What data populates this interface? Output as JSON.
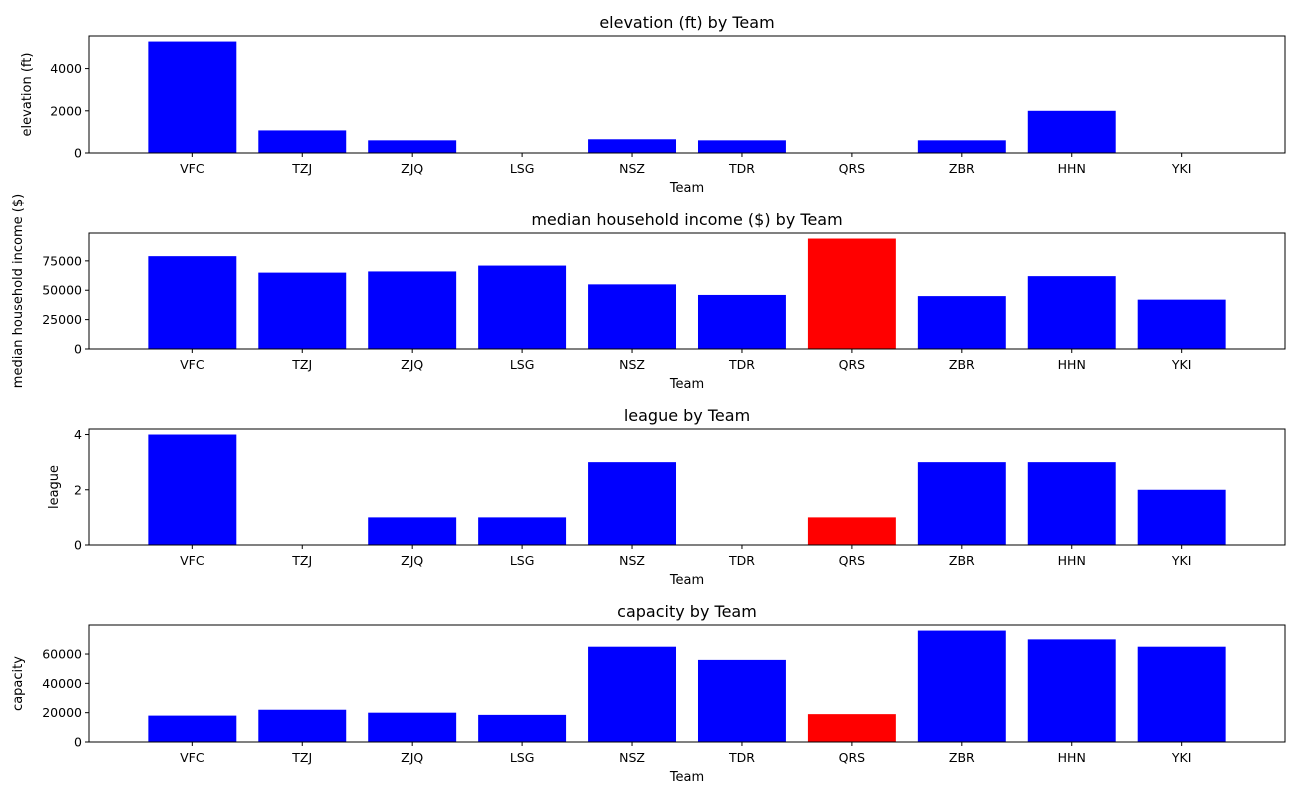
{
  "figure": {
    "highlight_color": "#ff0000",
    "bar_color": "#0000ff",
    "grid": false
  },
  "chart_data": [
    {
      "type": "bar",
      "title": "elevation (ft) by Team",
      "xlabel": "Team",
      "ylabel": "elevation (ft)",
      "categories": [
        "VFC",
        "TZJ",
        "ZJQ",
        "LSG",
        "NSZ",
        "TDR",
        "QRS",
        "ZBR",
        "HHN",
        "YKI"
      ],
      "values": [
        5280,
        1070,
        600,
        20,
        650,
        600,
        10,
        600,
        2000,
        20
      ],
      "highlight": "QRS",
      "ylim": [
        0,
        5544
      ],
      "yticks": [
        0,
        2000,
        4000
      ]
    },
    {
      "type": "bar",
      "title": "median household income ($) by Team",
      "xlabel": "Team",
      "ylabel": "median household income ($)",
      "categories": [
        "VFC",
        "TZJ",
        "ZJQ",
        "LSG",
        "NSZ",
        "TDR",
        "QRS",
        "ZBR",
        "HHN",
        "YKI"
      ],
      "values": [
        79000,
        65000,
        66000,
        71000,
        55000,
        46000,
        94000,
        45000,
        62000,
        42000
      ],
      "highlight": "QRS",
      "ylim": [
        0,
        98700
      ],
      "yticks": [
        0,
        25000,
        50000,
        75000
      ]
    },
    {
      "type": "bar",
      "title": "league by Team",
      "xlabel": "Team",
      "ylabel": "league",
      "categories": [
        "VFC",
        "TZJ",
        "ZJQ",
        "LSG",
        "NSZ",
        "TDR",
        "QRS",
        "ZBR",
        "HHN",
        "YKI"
      ],
      "values": [
        4,
        0,
        1,
        1,
        3,
        0,
        1,
        3,
        3,
        2
      ],
      "highlight": "QRS",
      "ylim": [
        0,
        4.2
      ],
      "yticks": [
        0,
        2,
        4
      ]
    },
    {
      "type": "bar",
      "title": "capacity by Team",
      "xlabel": "Team",
      "ylabel": "capacity",
      "categories": [
        "VFC",
        "TZJ",
        "ZJQ",
        "LSG",
        "NSZ",
        "TDR",
        "QRS",
        "ZBR",
        "HHN",
        "YKI"
      ],
      "values": [
        18000,
        22000,
        20000,
        18500,
        65000,
        56000,
        19000,
        76000,
        70000,
        65000
      ],
      "highlight": "QRS",
      "ylim": [
        0,
        79800
      ],
      "yticks": [
        0,
        20000,
        40000,
        60000
      ]
    }
  ]
}
